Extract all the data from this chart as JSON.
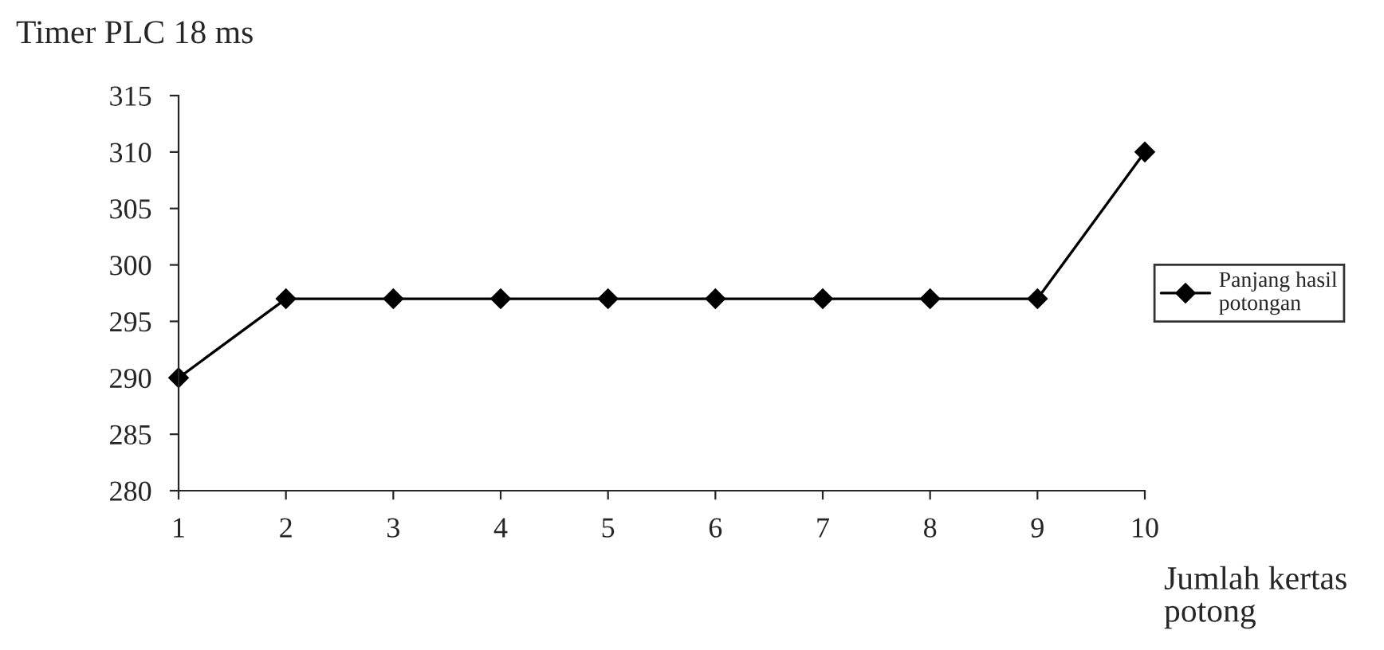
{
  "chart_data": {
    "type": "line",
    "title": "Timer PLC 18 ms",
    "xlabel": "Jumlah kertas\npotong",
    "categories": [
      "1",
      "2",
      "3",
      "4",
      "5",
      "6",
      "7",
      "8",
      "9",
      "10"
    ],
    "series": [
      {
        "name": "Panjang hasil\npotongan",
        "color": "#000000",
        "values": [
          290,
          297,
          297,
          297,
          297,
          297,
          297,
          297,
          297,
          310
        ]
      }
    ],
    "ylim": [
      280,
      315
    ],
    "yticks": [
      280,
      285,
      290,
      295,
      300,
      305,
      310,
      315
    ],
    "marker": "diamond",
    "line_style": "solid",
    "legend": "right",
    "grid": false
  }
}
